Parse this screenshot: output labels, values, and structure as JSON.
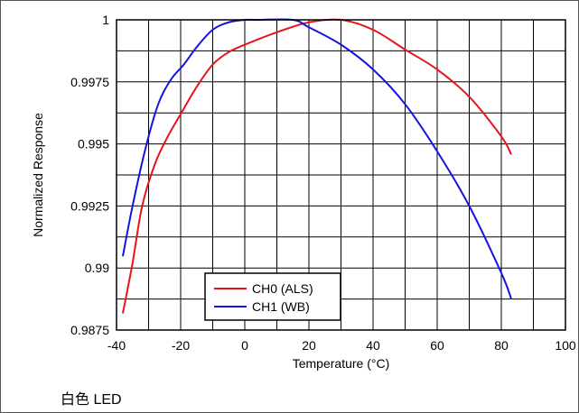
{
  "caption": "白色 LED",
  "chart_data": {
    "type": "line",
    "title": "",
    "xlabel": "Temperature (°C)",
    "ylabel": "Normalized Response",
    "xlim": [
      -40,
      100
    ],
    "ylim": [
      0.9875,
      1
    ],
    "x_ticks": [
      -40,
      -20,
      0,
      20,
      40,
      60,
      80,
      100
    ],
    "x_tick_labels": [
      "-40",
      "-20",
      "0",
      "20",
      "40",
      "60",
      "80",
      "100"
    ],
    "y_ticks": [
      0.9875,
      0.99,
      0.9925,
      0.995,
      0.9975,
      1
    ],
    "y_tick_labels": [
      "0.9875",
      "0.99",
      "0.9925",
      "0.995",
      "0.9975",
      "1"
    ],
    "grid": true,
    "legend_position": "bottom-center",
    "series": [
      {
        "name": "CH0 (ALS)",
        "color": "#e8141c",
        "x": [
          -38,
          -35,
          -32,
          -28,
          -24,
          -20,
          -15,
          -10,
          -5,
          0,
          10,
          20,
          30,
          40,
          50,
          60,
          70,
          80,
          83
        ],
        "y": [
          0.9882,
          0.9902,
          0.9925,
          0.9942,
          0.9953,
          0.9962,
          0.9973,
          0.9982,
          0.9987,
          0.999,
          0.9995,
          0.9999,
          1.0,
          0.9996,
          0.9988,
          0.998,
          0.9969,
          0.9953,
          0.9946
        ]
      },
      {
        "name": "CH1 (WB)",
        "color": "#1414e0",
        "x": [
          -38,
          -35,
          -31,
          -27,
          -23,
          -19,
          -15,
          -10,
          -5,
          0,
          4,
          15,
          20,
          30,
          40,
          50,
          60,
          70,
          80,
          83
        ],
        "y": [
          0.9905,
          0.9925,
          0.9948,
          0.9966,
          0.9976,
          0.9982,
          0.9989,
          0.9996,
          0.9999,
          1.0,
          1.0,
          1.0,
          0.9997,
          0.999,
          0.998,
          0.9966,
          0.9947,
          0.9925,
          0.9898,
          0.9888
        ]
      }
    ]
  }
}
